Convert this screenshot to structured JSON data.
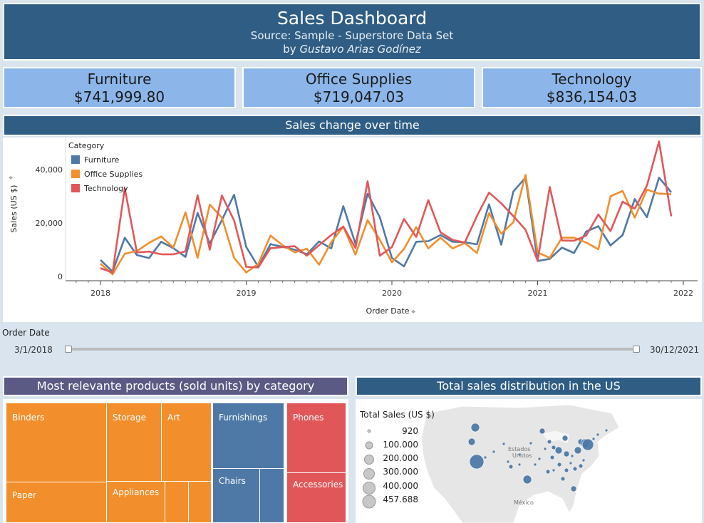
{
  "header": {
    "title": "Sales Dashboard",
    "source": "Source: Sample - Superstore Data Set",
    "by_prefix": "by",
    "author": "Gustavo Arias Godínez"
  },
  "kpis": [
    {
      "name": "Furniture",
      "value": "$741,999.80"
    },
    {
      "name": "Office Supplies",
      "value": "$719,047.03"
    },
    {
      "name": "Technology",
      "value": "$836,154.03"
    }
  ],
  "sections": {
    "sales_over_time": "Sales change over time",
    "products": "Most relevante products (sold units) by category",
    "map": "Total sales distribution in the US"
  },
  "slider": {
    "label": "Order Date",
    "start": "3/1/2018",
    "end": "30/12/2021"
  },
  "colors": {
    "furniture": "#4e79a7",
    "office": "#f28e2b",
    "technology": "#e15759",
    "header": "#2f5d84"
  },
  "chart_data": {
    "type": "line",
    "legend_title": "Category",
    "legend_placement": "top-left",
    "xlabel": "Order Date",
    "ylabel": "Sales (US $)",
    "x_ticks": [
      "2018",
      "2019",
      "2020",
      "2021",
      "2022"
    ],
    "y_ticks": [
      "0",
      "20,000",
      "40,000"
    ],
    "ylim": [
      0,
      54000
    ],
    "x": [
      "2018-01",
      "2018-02",
      "2018-03",
      "2018-04",
      "2018-05",
      "2018-06",
      "2018-07",
      "2018-08",
      "2018-09",
      "2018-10",
      "2018-11",
      "2018-12",
      "2019-01",
      "2019-02",
      "2019-03",
      "2019-04",
      "2019-05",
      "2019-06",
      "2019-07",
      "2019-08",
      "2019-09",
      "2019-10",
      "2019-11",
      "2019-12",
      "2020-01",
      "2020-02",
      "2020-03",
      "2020-04",
      "2020-05",
      "2020-06",
      "2020-07",
      "2020-08",
      "2020-09",
      "2020-10",
      "2020-11",
      "2020-12",
      "2021-01",
      "2021-02",
      "2021-03",
      "2021-04",
      "2021-05",
      "2021-06",
      "2021-07",
      "2021-08",
      "2021-09",
      "2021-10",
      "2021-11",
      "2021-12"
    ],
    "series": [
      {
        "name": "Furniture",
        "color": "#4e79a7",
        "values": [
          6200,
          1800,
          14500,
          8000,
          6900,
          13000,
          10600,
          7300,
          23800,
          12300,
          21100,
          30600,
          11100,
          3600,
          12100,
          11100,
          10000,
          8300,
          13100,
          10500,
          26300,
          12200,
          31000,
          22200,
          6900,
          3800,
          13000,
          13200,
          15500,
          13000,
          12800,
          12000,
          27000,
          11900,
          31800,
          37000,
          5800,
          6600,
          10800,
          8800,
          16800,
          18800,
          11600,
          15500,
          29000,
          22200,
          37000,
          31500
        ]
      },
      {
        "name": "Office Supplies",
        "color": "#f28e2b",
        "values": [
          4800,
          800,
          8500,
          9500,
          12600,
          15000,
          10800,
          24000,
          7000,
          26900,
          22000,
          7000,
          1500,
          4700,
          15300,
          11700,
          9000,
          10400,
          4400,
          12800,
          18600,
          8200,
          21100,
          13800,
          5300,
          10300,
          18500,
          10500,
          14500,
          10500,
          12500,
          8800,
          23700,
          16000,
          20300,
          38000,
          9000,
          7000,
          14500,
          14500,
          12700,
          10200,
          30000,
          32000,
          22000,
          32500,
          31000,
          30800
        ]
      },
      {
        "name": "Technology",
        "color": "#e15759",
        "values": [
          3100,
          1500,
          33000,
          9000,
          9300,
          8300,
          8300,
          9400,
          30400,
          10000,
          30300,
          21000,
          3600,
          3400,
          10600,
          11000,
          11300,
          7800,
          11700,
          15500,
          18700,
          10600,
          35600,
          7800,
          11000,
          21500,
          14800,
          28600,
          16500,
          13700,
          12700,
          22600,
          31400,
          27400,
          22600,
          17500,
          5900,
          33500,
          13500,
          13400,
          15300,
          23200,
          17000,
          28000,
          25400,
          34000,
          50500,
          22500
        ]
      }
    ]
  },
  "treemap": {
    "tiles": [
      {
        "id": "binders",
        "label": "Binders",
        "cat": "office"
      },
      {
        "id": "paper",
        "label": "Paper",
        "cat": "office"
      },
      {
        "id": "storage",
        "label": "Storage",
        "cat": "office"
      },
      {
        "id": "art",
        "label": "Art",
        "cat": "office"
      },
      {
        "id": "appliances",
        "label": "Appliances",
        "cat": "office"
      },
      {
        "id": "furnishings",
        "label": "Furnishings",
        "cat": "furniture"
      },
      {
        "id": "chairs",
        "label": "Chairs",
        "cat": "furniture"
      },
      {
        "id": "phones",
        "label": "Phones",
        "cat": "technology"
      },
      {
        "id": "accessories",
        "label": "Accessories",
        "cat": "technology"
      }
    ]
  },
  "map": {
    "legend_title": "Total Sales (US $)",
    "legend_values": [
      "920",
      "100.000",
      "200.000",
      "300.000",
      "400.000",
      "457.688"
    ],
    "labels": {
      "country": "Estados Unidos",
      "mexico": "México"
    }
  }
}
